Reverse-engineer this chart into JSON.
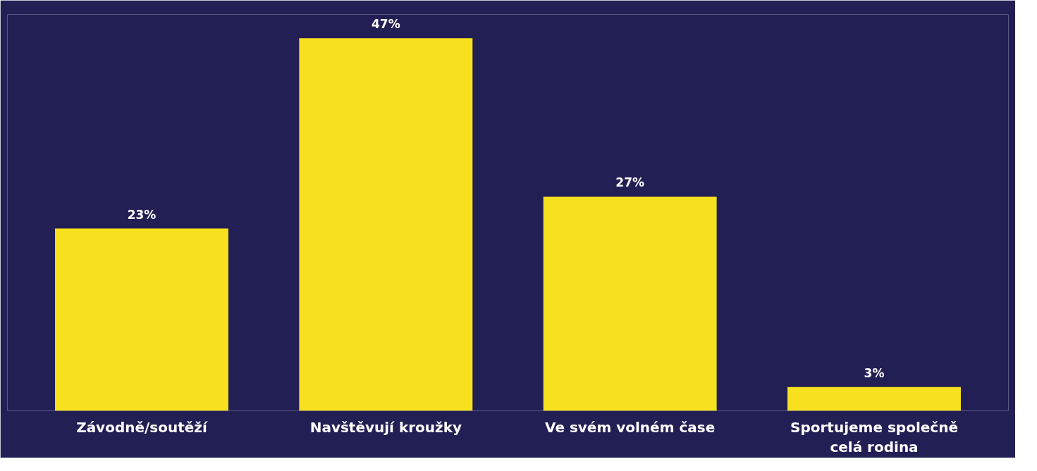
{
  "chart_data": {
    "type": "bar",
    "categories": [
      "Závodně/soutěží",
      "Navštěvují kroužky",
      "Ve svém volném čase",
      "Sportujeme společně celá rodina"
    ],
    "values": [
      23,
      47,
      27,
      3
    ],
    "value_labels": [
      "23%",
      "47%",
      "27%",
      "3%"
    ],
    "color": "#f7e11e",
    "ylim": [
      0,
      50
    ],
    "grid": false
  }
}
